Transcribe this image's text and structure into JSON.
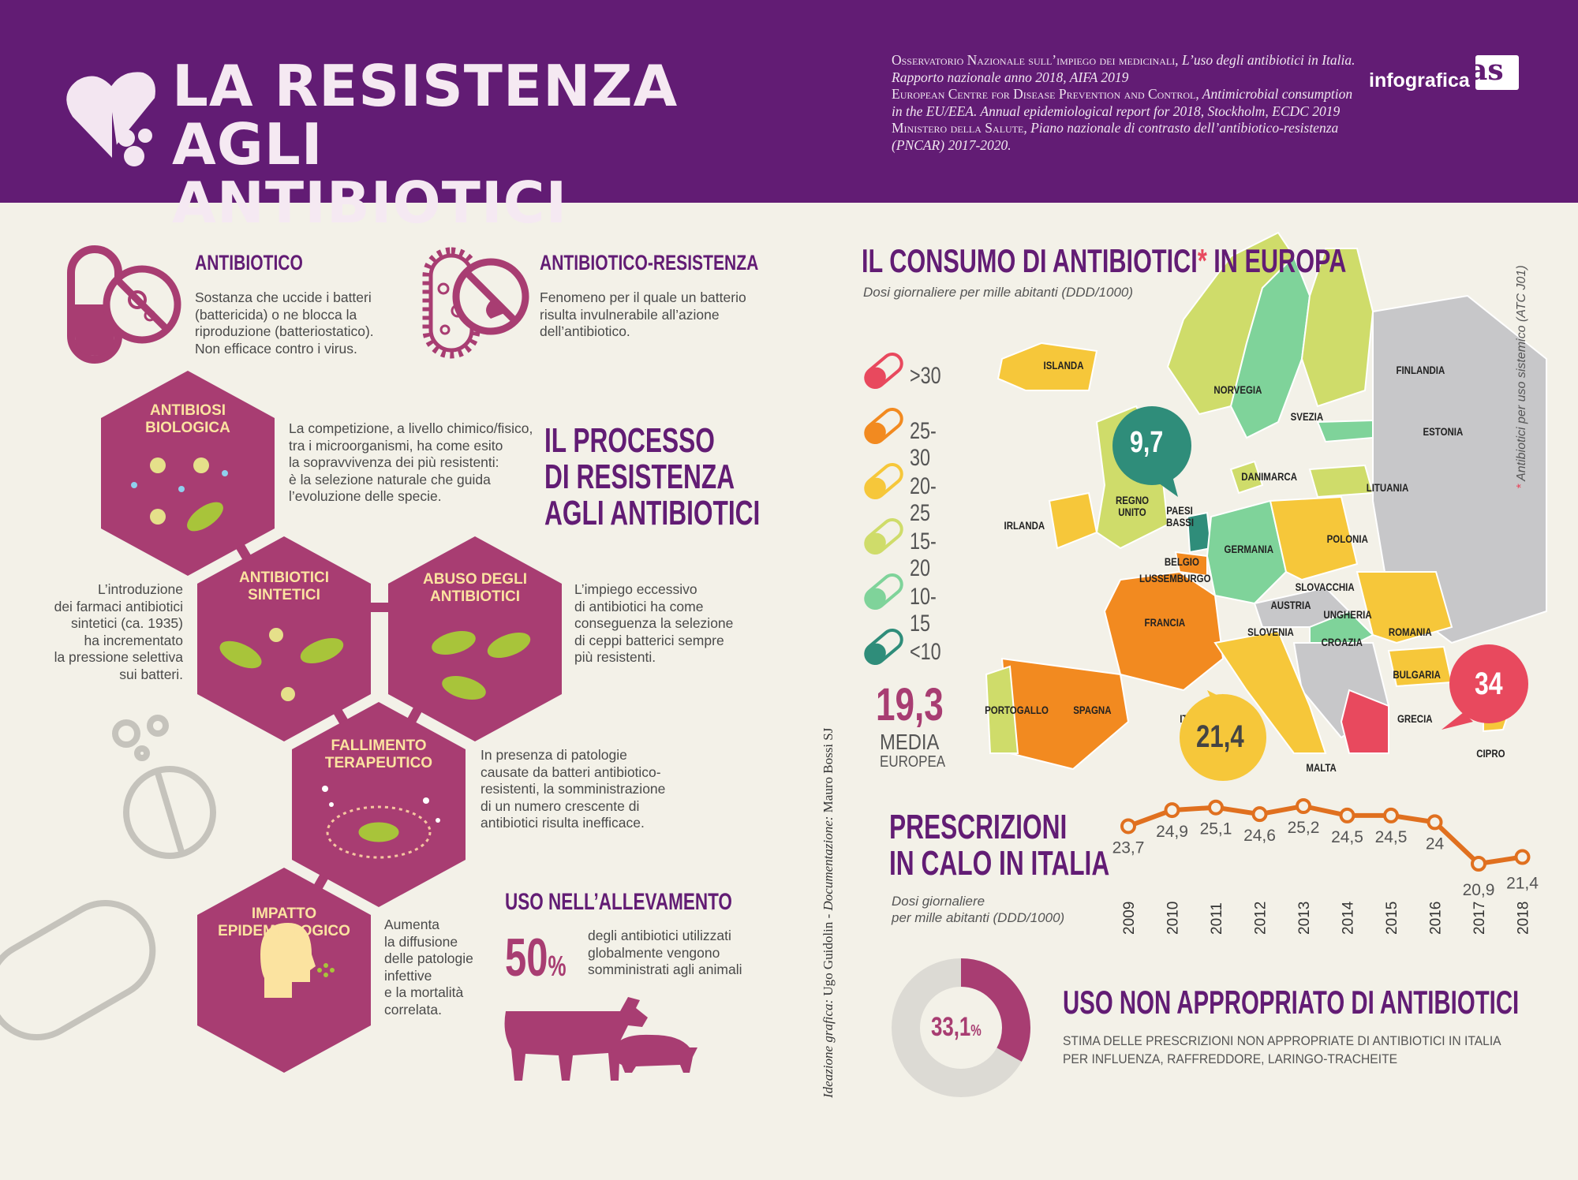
{
  "header": {
    "title_line1": "LA RESISTENZA",
    "title_line2": "AGLI ANTIBIOTICI",
    "sources": [
      {
        "caps": "Osservatorio Nazionale sull’impiego dei medicinali,",
        "rest": " L’uso degli antibiotici in Italia. Rapporto nazionale anno 2018, AIFA 2019"
      },
      {
        "caps": "European Centre for Disease Prevention and Control,",
        "rest": " Antimicrobial consumption in the EU/EEA. Annual epidemiological report for 2018, Stockholm, ECDC 2019"
      },
      {
        "caps": "Ministero della Salute,",
        "rest": " Piano nazionale di contrasto dell’antibiotico-resistenza (PNCAR) 2017-2020."
      }
    ],
    "brand": "infografica",
    "brand_logo": "as"
  },
  "definitions": {
    "antibiotico": {
      "title": "ANTIBIOTICO",
      "text": [
        "Sostanza che uccide i batteri",
        "(battericida) o ne blocca la",
        "riproduzione (batteriostatico).",
        "Non efficace contro i virus."
      ]
    },
    "resistenza": {
      "title": "ANTIBIOTICO-RESISTENZA",
      "text": [
        "Fenomeno per il quale un batterio",
        "risulta invulnerabile all’azione",
        "dell’antibiotico."
      ]
    }
  },
  "process": {
    "title": [
      "IL PROCESSO",
      "DI RESISTENZA",
      "AGLI ANTIBIOTICI"
    ],
    "steps": [
      {
        "label": [
          "ANTIBIOSI",
          "BIOLOGICA"
        ],
        "text": [
          "La competizione, a livello chimico/fisico,",
          "tra i microorganismi, ha come esito",
          "la sopravvivenza dei più resistenti:",
          "è la selezione naturale che guida",
          "l’evoluzione delle specie."
        ]
      },
      {
        "label": [
          "ANTIBIOTICI",
          "SINTETICI"
        ],
        "text": [
          "L’introduzione",
          "dei farmaci antibiotici",
          "sintetici (ca. 1935)",
          "ha incrementato",
          "la pressione selettiva",
          "sui batteri."
        ]
      },
      {
        "label": [
          "ABUSO DEGLI",
          "ANTIBIOTICI"
        ],
        "text": [
          "L’impiego eccessivo",
          "di antibiotici ha come",
          "conseguenza la selezione",
          "di ceppi batterici sempre",
          "più resistenti."
        ]
      },
      {
        "label": [
          "FALLIMENTO",
          "TERAPEUTICO"
        ],
        "text": [
          "In presenza di patologie",
          "causate da batteri antibiotico-",
          "resistenti, la somministrazione",
          "di un numero crescente di",
          "antibiotici risulta inefficace."
        ]
      },
      {
        "label": [
          "IMPATTO",
          "EPIDEMIOLOGICO"
        ],
        "text": [
          "Aumenta",
          "la diffusione",
          "delle patologie",
          "infettive",
          "e la mortalità",
          "correlata."
        ]
      }
    ]
  },
  "allevamento": {
    "title": "USO NELL’ALLEVAMENTO",
    "pct": "50",
    "pct_sign": "%",
    "text": [
      "degli antibiotici utilizzati",
      "globalmente vengono",
      "somministrati agli animali"
    ]
  },
  "credits": {
    "label1": "Ideazione grafica:",
    "name1": "Ugo Guidolin",
    "label2": "Documentazione:",
    "name2": "Mauro Bossi  SJ"
  },
  "europe": {
    "title": "IL CONSUMO DI ANTIBIOTICI",
    "title_star": "*",
    "title_end": " IN EUROPA",
    "subtitle": "Dosi giornaliere per mille abitanti (DDD/1000)",
    "note_star": "*",
    "note": " Antibiotici per uso sistemico (ATC J01)",
    "legend": [
      {
        "label": ">30",
        "color": "#e8495e"
      },
      {
        "label": "25-30",
        "color": "#f28a20"
      },
      {
        "label": "20-25",
        "color": "#f6c73a"
      },
      {
        "label": "15-20",
        "color": "#cfdc6a"
      },
      {
        "label": "10-15",
        "color": "#7fd39a"
      },
      {
        "label": "<10",
        "color": "#2f8d7a"
      }
    ],
    "average_value": "19,3",
    "average_label1": "MEDIA",
    "average_label2": "EUROPEA",
    "no_data_color": "#c7c7c9",
    "countries": [
      "ISLANDA",
      "NORVEGIA",
      "SVEZIA",
      "FINLANDIA",
      "ESTONIA",
      "DANIMARCA",
      "LITUANIA",
      "REGNO UNITO",
      "PAESI BASSI",
      "IRLANDA",
      "GERMANIA",
      "POLONIA",
      "BELGIO",
      "LUSSEMBURGO",
      "SLOVACCHIA",
      "AUSTRIA",
      "UNGHERIA",
      "FRANCIA",
      "SLOVENIA",
      "CROAZIA",
      "ROMANIA",
      "BULGARIA",
      "PORTOGALLO",
      "SPAGNA",
      "ITALIA",
      "GRECIA",
      "CIPRO",
      "MALTA"
    ],
    "callouts": [
      {
        "country": "PAESI BASSI",
        "value": "9,7",
        "color": "#2f8d7a"
      },
      {
        "country": "ITALIA",
        "value": "21,4",
        "color": "#f6c73a"
      },
      {
        "country": "GRECIA",
        "value": "34",
        "color": "#e8495e"
      }
    ]
  },
  "prescrizioni": {
    "title": [
      "PRESCRIZIONI",
      "IN CALO IN ITALIA"
    ],
    "subtitle": [
      "Dosi giornaliere",
      "per mille abitanti (DDD/1000)"
    ],
    "chart_data": {
      "type": "line",
      "x": [
        "2009",
        "2010",
        "2011",
        "2012",
        "2013",
        "2014",
        "2015",
        "2016",
        "2017",
        "2018"
      ],
      "values": [
        23.7,
        24.9,
        25.1,
        24.6,
        25.2,
        24.5,
        24.5,
        24,
        20.9,
        21.4
      ],
      "labels": [
        "23,7",
        "24,9",
        "25,1",
        "24,6",
        "25,2",
        "24,5",
        "24,5",
        "24",
        "20,9",
        "21,4"
      ],
      "color": "#e0701f"
    }
  },
  "nonappropriato": {
    "title": "USO NON APPROPRIATO DI ANTIBIOTICI",
    "pct": "33,1",
    "pct_sign": "%",
    "fraction": 0.331,
    "text": [
      "STIMA DELLE PRESCRIZIONI NON APPROPRIATE DI ANTIBIOTICI IN ITALIA",
      "PER INFLUENZA, RAFFREDDORE, LARINGO-TRACHEITE"
    ]
  },
  "colors": {
    "purple": "#621c74",
    "magenta": "#a83d72",
    "hex_text": "#fbe3a0",
    "bacteria": "#a8c43a",
    "background": "#f3f1e8"
  }
}
